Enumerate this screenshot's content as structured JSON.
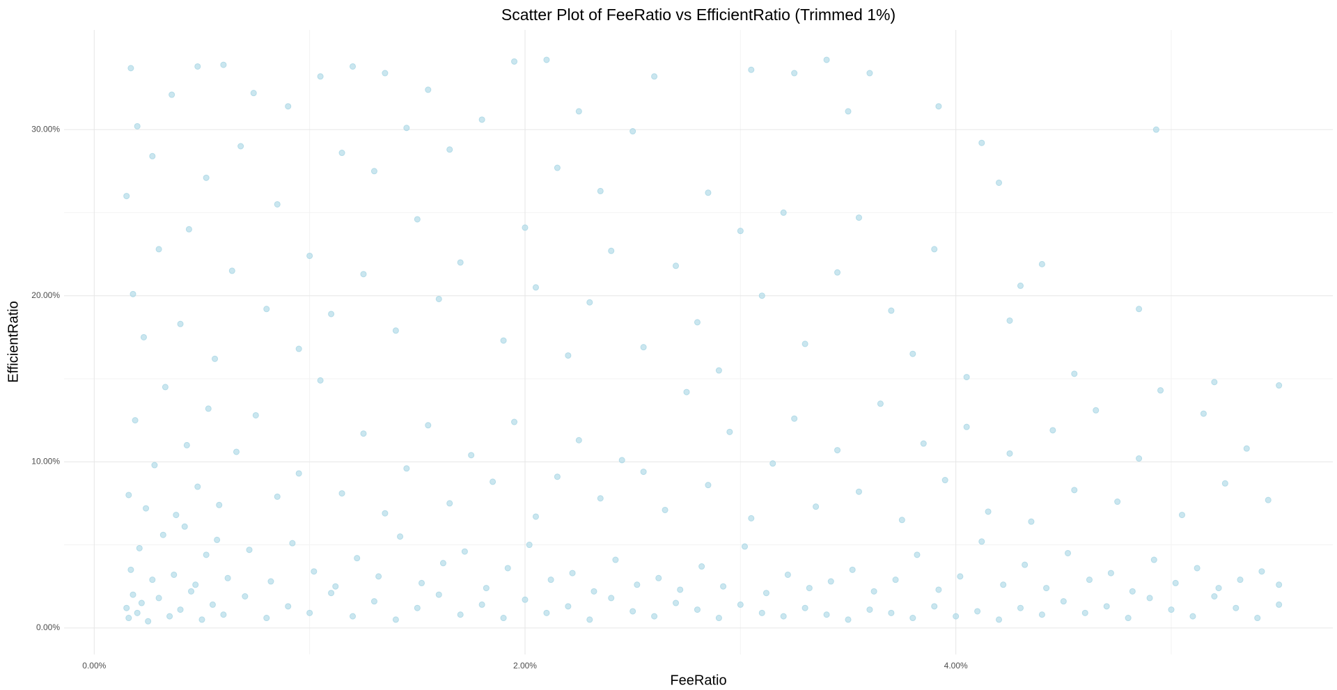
{
  "chart_data": {
    "type": "scatter",
    "title": "Scatter Plot of FeeRatio vs EfficientRatio (Trimmed 1%)",
    "x_label": "FeeRatio",
    "y_label": "EfficientRatio",
    "color": "#add8e6",
    "xlim": [
      -0.14,
      5.75
    ],
    "ylim": [
      -1.6,
      36
    ],
    "xticks": [
      {
        "value": 0,
        "label": "0.00%"
      },
      {
        "value": 2,
        "label": "2.00%"
      },
      {
        "value": 4,
        "label": "4.00%"
      }
    ],
    "yticks": [
      {
        "value": 0,
        "label": "0.00%"
      },
      {
        "value": 10,
        "label": "10.00%"
      },
      {
        "value": 20,
        "label": "20.00%"
      },
      {
        "value": 30,
        "label": "30.00%"
      }
    ],
    "x_minor_grid": [
      1,
      3,
      5
    ],
    "y_minor_grid": [
      5,
      15,
      25
    ],
    "grid": true,
    "x": [
      0.15,
      0.16,
      0.18,
      0.2,
      0.22,
      0.25,
      0.3,
      0.35,
      0.4,
      0.45,
      0.5,
      0.55,
      0.6,
      0.7,
      0.8,
      0.9,
      1.0,
      1.1,
      1.2,
      1.3,
      1.4,
      1.5,
      1.6,
      1.7,
      1.8,
      1.9,
      2.0,
      2.1,
      2.2,
      2.3,
      2.4,
      2.5,
      2.6,
      2.7,
      2.8,
      2.9,
      3.0,
      3.1,
      3.2,
      3.3,
      3.4,
      3.5,
      3.6,
      3.7,
      3.8,
      3.9,
      4.0,
      4.1,
      4.2,
      4.3,
      4.4,
      4.5,
      4.6,
      4.7,
      4.8,
      4.9,
      5.0,
      5.1,
      5.2,
      5.3,
      5.4,
      5.5,
      0.17,
      0.21,
      0.27,
      0.32,
      0.37,
      0.42,
      0.47,
      0.52,
      0.57,
      0.62,
      0.72,
      0.82,
      0.92,
      1.02,
      1.12,
      1.22,
      1.32,
      1.42,
      1.52,
      1.62,
      1.72,
      1.82,
      1.92,
      2.02,
      2.12,
      2.22,
      2.32,
      2.42,
      2.52,
      2.62,
      2.72,
      2.82,
      2.92,
      3.02,
      3.12,
      3.22,
      3.32,
      3.42,
      3.52,
      3.62,
      3.72,
      3.82,
      3.92,
      4.02,
      4.12,
      4.22,
      4.32,
      4.42,
      4.52,
      4.62,
      4.72,
      4.82,
      4.92,
      5.02,
      5.12,
      5.22,
      5.32,
      5.42,
      5.5,
      0.16,
      0.19,
      0.24,
      0.28,
      0.33,
      0.38,
      0.43,
      0.48,
      0.53,
      0.58,
      0.66,
      0.75,
      0.85,
      0.95,
      1.05,
      1.15,
      1.25,
      1.35,
      1.45,
      1.55,
      1.65,
      1.75,
      1.85,
      1.95,
      2.05,
      2.15,
      2.25,
      2.35,
      2.45,
      2.55,
      2.65,
      2.75,
      2.85,
      2.95,
      3.05,
      3.15,
      3.25,
      3.35,
      3.45,
      3.55,
      3.65,
      3.75,
      3.85,
      3.95,
      4.05,
      4.15,
      4.25,
      4.35,
      4.45,
      4.55,
      4.65,
      4.75,
      4.85,
      4.95,
      5.05,
      5.15,
      5.25,
      5.35,
      5.45,
      5.5,
      0.15,
      0.17,
      0.18,
      0.2,
      0.23,
      0.27,
      0.3,
      0.36,
      0.4,
      0.44,
      0.48,
      0.52,
      0.56,
      0.6,
      0.64,
      0.68,
      0.74,
      0.8,
      0.85,
      0.9,
      0.95,
      1.0,
      1.05,
      1.1,
      1.15,
      1.2,
      1.25,
      1.3,
      1.35,
      1.4,
      1.45,
      1.5,
      1.55,
      1.6,
      1.65,
      1.7,
      1.8,
      1.9,
      1.95,
      2.0,
      2.05,
      2.1,
      2.15,
      2.2,
      2.25,
      2.3,
      2.35,
      2.4,
      2.5,
      2.55,
      2.6,
      2.7,
      2.8,
      2.85,
      2.9,
      3.0,
      3.05,
      3.1,
      3.2,
      3.25,
      3.3,
      3.4,
      3.45,
      3.5,
      3.55,
      3.6,
      3.7,
      3.8,
      3.9,
      3.92,
      4.05,
      4.12,
      4.2,
      4.25,
      4.3,
      4.4,
      4.55,
      4.85,
      4.93,
      5.2
    ],
    "values": [
      1.2,
      0.6,
      2.0,
      0.9,
      1.5,
      0.4,
      1.8,
      0.7,
      1.1,
      2.2,
      0.5,
      1.4,
      0.8,
      1.9,
      0.6,
      1.3,
      0.9,
      2.1,
      0.7,
      1.6,
      0.5,
      1.2,
      2.0,
      0.8,
      1.4,
      0.6,
      1.7,
      0.9,
      1.3,
      0.5,
      1.8,
      1.0,
      0.7,
      1.5,
      1.1,
      0.6,
      1.4,
      0.9,
      0.7,
      1.2,
      0.8,
      0.5,
      1.1,
      0.9,
      0.6,
      1.3,
      0.7,
      1.0,
      0.5,
      1.2,
      0.8,
      1.6,
      0.9,
      1.3,
      0.6,
      1.8,
      1.1,
      0.7,
      1.9,
      1.2,
      0.6,
      1.4,
      3.5,
      4.8,
      2.9,
      5.6,
      3.2,
      6.1,
      2.6,
      4.4,
      5.3,
      3.0,
      4.7,
      2.8,
      5.1,
      3.4,
      2.5,
      4.2,
      3.1,
      5.5,
      2.7,
      3.9,
      4.6,
      2.4,
      3.6,
      5.0,
      2.9,
      3.3,
      2.2,
      4.1,
      2.6,
      3.0,
      2.3,
      3.7,
      2.5,
      4.9,
      2.1,
      3.2,
      2.4,
      2.8,
      3.5,
      2.2,
      2.9,
      4.4,
      2.3,
      3.1,
      5.2,
      2.6,
      3.8,
      2.4,
      4.5,
      2.9,
      3.3,
      2.2,
      4.1,
      2.7,
      3.6,
      2.4,
      2.9,
      3.4,
      2.6,
      8.0,
      12.5,
      7.2,
      9.8,
      14.5,
      6.8,
      11.0,
      8.5,
      13.2,
      7.4,
      10.6,
      12.8,
      7.9,
      9.3,
      14.9,
      8.1,
      11.7,
      6.9,
      9.6,
      12.2,
      7.5,
      10.4,
      8.8,
      12.4,
      6.7,
      9.1,
      11.3,
      7.8,
      10.1,
      9.4,
      7.1,
      14.2,
      8.6,
      11.8,
      6.6,
      9.9,
      12.6,
      7.3,
      10.7,
      8.2,
      13.5,
      6.5,
      11.1,
      8.9,
      12.1,
      7.0,
      10.5,
      6.4,
      11.9,
      8.3,
      13.1,
      7.6,
      10.2,
      14.3,
      6.8,
      12.9,
      8.7,
      10.8,
      7.7,
      14.6,
      26.0,
      33.7,
      20.1,
      30.2,
      17.5,
      28.4,
      22.8,
      32.1,
      18.3,
      24.0,
      33.8,
      27.1,
      16.2,
      33.9,
      21.5,
      29.0,
      32.2,
      19.2,
      25.5,
      31.4,
      16.8,
      22.4,
      33.2,
      18.9,
      28.6,
      33.8,
      21.3,
      27.5,
      33.4,
      17.9,
      30.1,
      24.6,
      32.4,
      19.8,
      28.8,
      22.0,
      30.6,
      17.3,
      34.1,
      24.1,
      20.5,
      34.2,
      27.7,
      16.4,
      31.1,
      19.6,
      26.3,
      22.7,
      29.9,
      16.9,
      33.2,
      21.8,
      18.4,
      26.2,
      15.5,
      23.9,
      33.6,
      20.0,
      25.0,
      33.4,
      17.1,
      34.2,
      21.4,
      31.1,
      24.7,
      33.4,
      19.1,
      16.5,
      22.8,
      31.4,
      15.1,
      29.2,
      26.8,
      18.5,
      20.6,
      21.9,
      15.3,
      19.2,
      30.0,
      14.8
    ]
  }
}
